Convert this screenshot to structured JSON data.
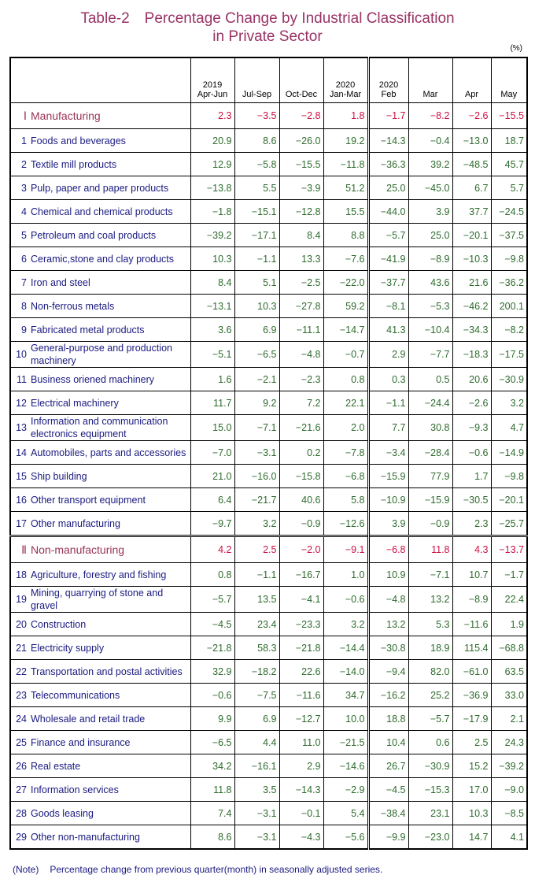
{
  "title": [
    "Table-2　Percentage Change by Industrial Classification",
    "in Private Sector"
  ],
  "unit": "(%)",
  "header": {
    "years": [
      "2019",
      null,
      null,
      "2020",
      "2020",
      null,
      null,
      null
    ],
    "periods": [
      "Apr-Jun",
      "Jul-Sep",
      "Oct-Dec",
      "Jan-Mar",
      "Feb",
      "Mar",
      "Apr",
      "May"
    ]
  },
  "sections": [
    {
      "no": "Ⅰ",
      "name": "Manufacturing",
      "values": [
        "2.3",
        "−3.5",
        "−2.8",
        "1.8",
        "−1.7",
        "−8.2",
        "−2.6",
        "−15.5"
      ],
      "rows": [
        {
          "no": "1",
          "name": "Foods and beverages",
          "values": [
            "20.9",
            "8.6",
            "−26.0",
            "19.2",
            "−14.3",
            "−0.4",
            "−13.0",
            "18.7"
          ]
        },
        {
          "no": "2",
          "name": "Textile mill products",
          "values": [
            "12.9",
            "−5.8",
            "−15.5",
            "−11.8",
            "−36.3",
            "39.2",
            "−48.5",
            "45.7"
          ]
        },
        {
          "no": "3",
          "name": "Pulp, paper and paper products",
          "values": [
            "−13.8",
            "5.5",
            "−3.9",
            "51.2",
            "25.0",
            "−45.0",
            "6.7",
            "5.7"
          ]
        },
        {
          "no": "4",
          "name": "Chemical and chemical products",
          "values": [
            "−1.8",
            "−15.1",
            "−12.8",
            "15.5",
            "−44.0",
            "3.9",
            "37.7",
            "−24.5"
          ]
        },
        {
          "no": "5",
          "name": "Petroleum and coal products",
          "values": [
            "−39.2",
            "−17.1",
            "8.4",
            "8.8",
            "−5.7",
            "25.0",
            "−20.1",
            "−37.5"
          ]
        },
        {
          "no": "6",
          "name": "Ceramic,stone and clay products",
          "values": [
            "10.3",
            "−1.1",
            "13.3",
            "−7.6",
            "−41.9",
            "−8.9",
            "−10.3",
            "−9.8"
          ]
        },
        {
          "no": "7",
          "name": "Iron and steel",
          "values": [
            "8.4",
            "5.1",
            "−2.5",
            "−22.0",
            "−37.7",
            "43.6",
            "21.6",
            "−36.2"
          ]
        },
        {
          "no": "8",
          "name": "Non-ferrous metals",
          "values": [
            "−13.1",
            "10.3",
            "−27.8",
            "59.2",
            "−8.1",
            "−5.3",
            "−46.2",
            "200.1"
          ]
        },
        {
          "no": "9",
          "name": "Fabricated metal products",
          "values": [
            "3.6",
            "6.9",
            "−11.1",
            "−14.7",
            "41.3",
            "−10.4",
            "−34.3",
            "−8.2"
          ]
        },
        {
          "no": "10",
          "name": "General-purpose and production machinery",
          "values": [
            "−5.1",
            "−6.5",
            "−4.8",
            "−0.7",
            "2.9",
            "−7.7",
            "−18.3",
            "−17.5"
          ]
        },
        {
          "no": "11",
          "name": "Business oriened machinery",
          "values": [
            "1.6",
            "−2.1",
            "−2.3",
            "0.8",
            "0.3",
            "0.5",
            "20.6",
            "−30.9"
          ]
        },
        {
          "no": "12",
          "name": "Electrical machinery",
          "values": [
            "11.7",
            "9.2",
            "7.2",
            "22.1",
            "−1.1",
            "−24.4",
            "−2.6",
            "3.2"
          ]
        },
        {
          "no": "13",
          "name": "Information and communication electronics equipment",
          "values": [
            "15.0",
            "−7.1",
            "−21.6",
            "2.0",
            "7.7",
            "30.8",
            "−9.3",
            "4.7"
          ]
        },
        {
          "no": "14",
          "name": "Automobiles, parts and accessories",
          "values": [
            "−7.0",
            "−3.1",
            "0.2",
            "−7.8",
            "−3.4",
            "−28.4",
            "−0.6",
            "−14.9"
          ]
        },
        {
          "no": "15",
          "name": "Ship building",
          "values": [
            "21.0",
            "−16.0",
            "−15.8",
            "−6.8",
            "−15.9",
            "77.9",
            "1.7",
            "−9.8"
          ]
        },
        {
          "no": "16",
          "name": "Other transport equipment",
          "values": [
            "6.4",
            "−21.7",
            "40.6",
            "5.8",
            "−10.9",
            "−15.9",
            "−30.5",
            "−20.1"
          ]
        },
        {
          "no": "17",
          "name": "Other manufacturing",
          "values": [
            "−9.7",
            "3.2",
            "−0.9",
            "−12.6",
            "3.9",
            "−0.9",
            "2.3",
            "−25.7"
          ]
        }
      ]
    },
    {
      "no": "Ⅱ",
      "name": "Non-manufacturing",
      "values": [
        "4.2",
        "2.5",
        "−2.0",
        "−9.1",
        "−6.8",
        "11.8",
        "4.3",
        "−13.7"
      ],
      "rows": [
        {
          "no": "18",
          "name": "Agriculture, forestry and fishing",
          "values": [
            "0.8",
            "−1.1",
            "−16.7",
            "1.0",
            "10.9",
            "−7.1",
            "10.7",
            "−1.7"
          ]
        },
        {
          "no": "19",
          "name": "Mining, quarrying of stone and gravel",
          "values": [
            "−5.7",
            "13.5",
            "−4.1",
            "−0.6",
            "−4.8",
            "13.2",
            "−8.9",
            "22.4"
          ]
        },
        {
          "no": "20",
          "name": "Construction",
          "values": [
            "−4.5",
            "23.4",
            "−23.3",
            "3.2",
            "13.2",
            "5.3",
            "−11.6",
            "1.9"
          ]
        },
        {
          "no": "21",
          "name": "Electricity supply",
          "values": [
            "−21.8",
            "58.3",
            "−21.8",
            "−14.4",
            "−30.8",
            "18.9",
            "115.4",
            "−68.8"
          ]
        },
        {
          "no": "22",
          "name": "Transportation and postal activities",
          "values": [
            "32.9",
            "−18.2",
            "22.6",
            "−14.0",
            "−9.4",
            "82.0",
            "−61.0",
            "63.5"
          ]
        },
        {
          "no": "23",
          "name": "Telecommunications",
          "values": [
            "−0.6",
            "−7.5",
            "−11.6",
            "34.7",
            "−16.2",
            "25.2",
            "−36.9",
            "33.0"
          ]
        },
        {
          "no": "24",
          "name": "Wholesale and retail trade",
          "values": [
            "9.9",
            "6.9",
            "−12.7",
            "10.0",
            "18.8",
            "−5.7",
            "−17.9",
            "2.1"
          ]
        },
        {
          "no": "25",
          "name": "Finance and insurance",
          "values": [
            "−6.5",
            "4.4",
            "11.0",
            "−21.5",
            "10.4",
            "0.6",
            "2.5",
            "24.3"
          ]
        },
        {
          "no": "26",
          "name": "Real estate",
          "values": [
            "34.2",
            "−16.1",
            "2.9",
            "−14.6",
            "26.7",
            "−30.9",
            "15.2",
            "−39.2"
          ]
        },
        {
          "no": "27",
          "name": "Information services",
          "values": [
            "11.8",
            "3.5",
            "−14.3",
            "−2.9",
            "−4.5",
            "−15.3",
            "17.0",
            "−9.0"
          ]
        },
        {
          "no": "28",
          "name": "Goods leasing",
          "values": [
            "7.4",
            "−3.1",
            "−0.1",
            "5.4",
            "−38.4",
            "23.1",
            "10.3",
            "−8.5"
          ]
        },
        {
          "no": "29",
          "name": "Other non-manufacturing",
          "values": [
            "8.6",
            "−3.1",
            "−4.3",
            "−5.6",
            "−9.9",
            "−23.0",
            "14.7",
            "4.1"
          ]
        }
      ]
    }
  ],
  "note": {
    "label": "(Note)",
    "text": "Percentage change from previous quarter(month) in seasonally adjusted series."
  }
}
